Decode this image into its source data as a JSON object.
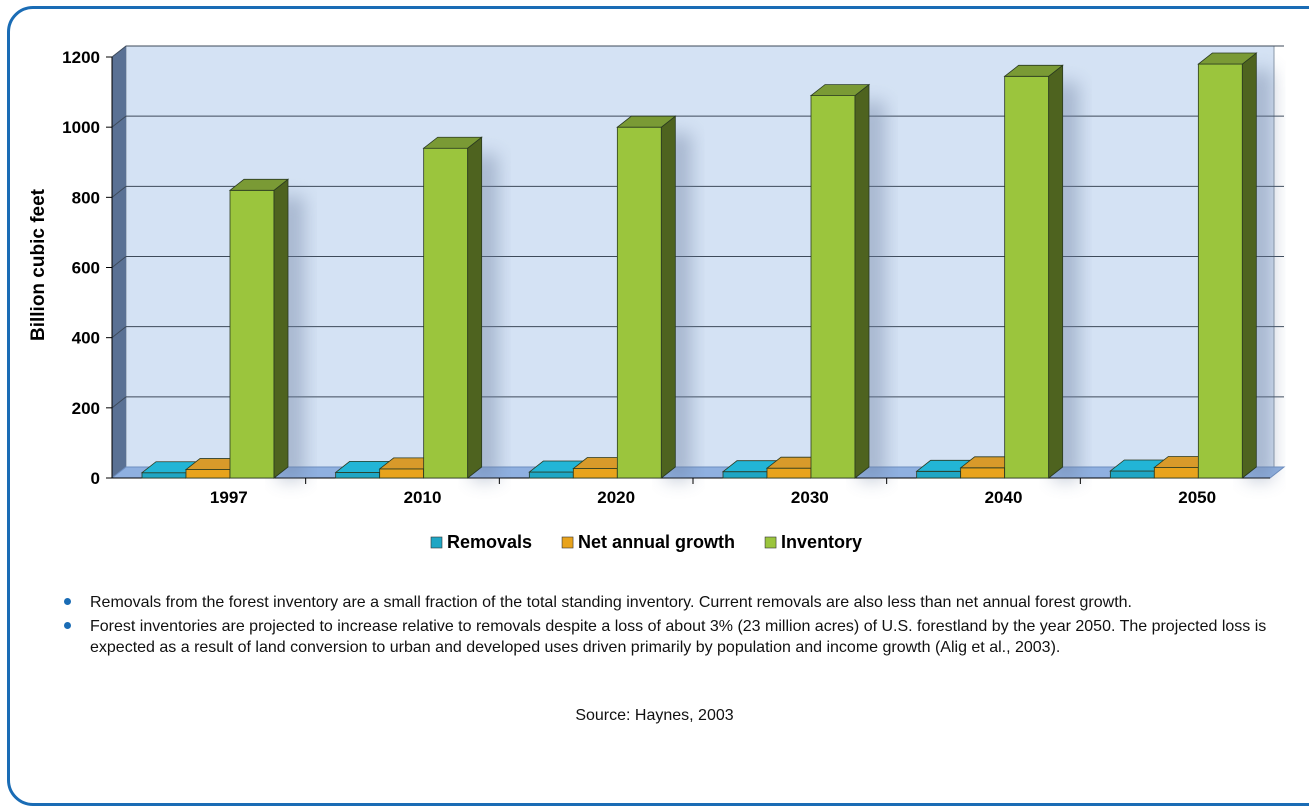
{
  "chart_data": {
    "type": "bar",
    "categories": [
      "1997",
      "2010",
      "2020",
      "2030",
      "2040",
      "2050"
    ],
    "series": [
      {
        "name": "Removals",
        "values": [
          15,
          16,
          17,
          18,
          19,
          20
        ],
        "color": "#1fa6c4"
      },
      {
        "name": "Net annual growth",
        "values": [
          24,
          26,
          27,
          28,
          29,
          30
        ],
        "color": "#e8a31c"
      },
      {
        "name": "Inventory",
        "values": [
          820,
          940,
          1000,
          1090,
          1145,
          1180
        ],
        "color": "#9bc53d"
      }
    ],
    "ylabel": "Billion  cubic feet",
    "ylim": [
      0,
      1200
    ],
    "yticks": [
      "0",
      "200",
      "400",
      "600",
      "800",
      "1000",
      "1200"
    ],
    "legend_position": "bottom",
    "grid": true
  },
  "notes": [
    "Removals from the forest inventory are a small fraction of the total standing inventory. Current removals are also less than net annual forest growth.",
    "Forest inventories are projected to increase relative to removals despite a loss of about 3% (23 million acres) of U.S. forestland by the year 2050. The projected loss is expected as a result of land conversion to urban and developed uses driven primarily by population and income growth (Alig et al., 2003)."
  ],
  "source": "Source: Haynes, 2003",
  "colors": {
    "frame": "#1a6cb5",
    "plot_bg": "#d4e2f4",
    "floor": "#8fb0e0",
    "side_wall": "#5a7194"
  }
}
